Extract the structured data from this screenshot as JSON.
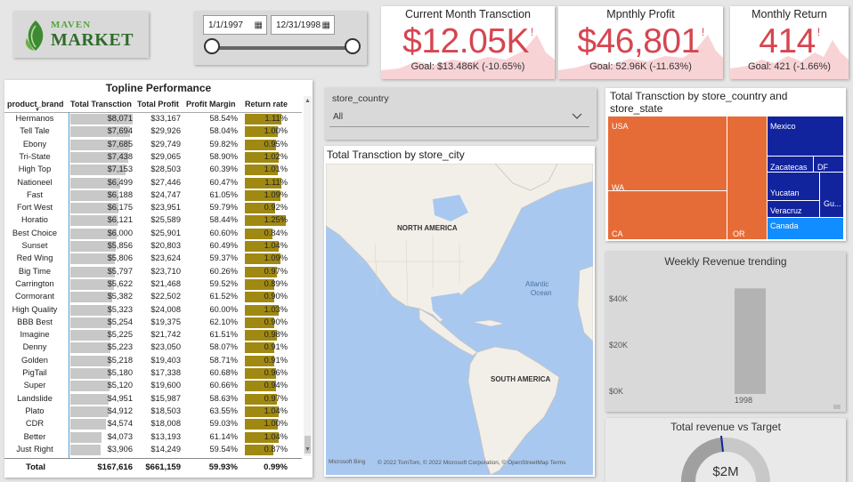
{
  "logo": {
    "line1": "MAVEN",
    "line2": "MARKET"
  },
  "date_slicer": {
    "start": "1/1/1997",
    "end": "12/31/1998"
  },
  "kpis": [
    {
      "title": "Current Month Transction",
      "value": "$12.05K",
      "indicator": "!",
      "goal": "Goal: $13.486K (-10.65%)"
    },
    {
      "title": "Mpnthly Profit",
      "value": "$46,801",
      "indicator": "!",
      "goal": "Goal: 52.96K (-11.63%)"
    },
    {
      "title": "Monthly Return",
      "value": "414",
      "indicator": "!",
      "goal": "Goal: 421 (-1.66%)"
    }
  ],
  "table": {
    "title": "Topline Performance",
    "columns": [
      "product_brand",
      "Total Transction",
      "Total Profit",
      "Profit Margin",
      "Return rate"
    ],
    "rows": [
      [
        "Hermanos",
        "$8,071",
        "$33,167",
        "58.54%",
        "1.11%"
      ],
      [
        "Tell Tale",
        "$7,694",
        "$29,926",
        "58.04%",
        "1.00%"
      ],
      [
        "Ebony",
        "$7,685",
        "$29,749",
        "59.82%",
        "0.95%"
      ],
      [
        "Tri-State",
        "$7,438",
        "$29,065",
        "58.90%",
        "1.02%"
      ],
      [
        "High Top",
        "$7,153",
        "$28,503",
        "60.39%",
        "1.01%"
      ],
      [
        "Nationeel",
        "$6,499",
        "$27,446",
        "60.47%",
        "1.11%"
      ],
      [
        "Fast",
        "$6,188",
        "$24,747",
        "61.05%",
        "1.09%"
      ],
      [
        "Fort West",
        "$6,175",
        "$23,951",
        "59.79%",
        "0.92%"
      ],
      [
        "Horatio",
        "$6,121",
        "$25,589",
        "58.44%",
        "1.25%"
      ],
      [
        "Best Choice",
        "$6,000",
        "$25,901",
        "60.60%",
        "0.84%"
      ],
      [
        "Sunset",
        "$5,856",
        "$20,803",
        "60.49%",
        "1.04%"
      ],
      [
        "Red Wing",
        "$5,806",
        "$23,624",
        "59.37%",
        "1.09%"
      ],
      [
        "Big Time",
        "$5,797",
        "$23,710",
        "60.26%",
        "0.97%"
      ],
      [
        "Carrington",
        "$5,622",
        "$21,468",
        "59.52%",
        "0.89%"
      ],
      [
        "Cormorant",
        "$5,382",
        "$22,502",
        "61.52%",
        "0.90%"
      ],
      [
        "High Quality",
        "$5,323",
        "$24,008",
        "60.00%",
        "1.03%"
      ],
      [
        "BBB Best",
        "$5,254",
        "$19,375",
        "62.10%",
        "0.90%"
      ],
      [
        "Imagine",
        "$5,225",
        "$21,742",
        "61.51%",
        "0.98%"
      ],
      [
        "Denny",
        "$5,223",
        "$23,050",
        "58.07%",
        "0.91%"
      ],
      [
        "Golden",
        "$5,218",
        "$19,403",
        "58.71%",
        "0.91%"
      ],
      [
        "PigTail",
        "$5,180",
        "$17,338",
        "60.68%",
        "0.96%"
      ],
      [
        "Super",
        "$5,120",
        "$19,600",
        "60.66%",
        "0.94%"
      ],
      [
        "Landslide",
        "$4,951",
        "$15,987",
        "58.63%",
        "0.97%"
      ],
      [
        "Plato",
        "$4,912",
        "$18,503",
        "63.55%",
        "1.04%"
      ],
      [
        "CDR",
        "$4,574",
        "$18,008",
        "59.03%",
        "1.00%"
      ],
      [
        "Better",
        "$4,073",
        "$13,193",
        "61.14%",
        "1.04%"
      ],
      [
        "Just Right",
        "$3,906",
        "$14,249",
        "59.54%",
        "0.87%"
      ]
    ],
    "total": [
      "Total",
      "$167,616",
      "$661,159",
      "59.93%",
      "0.99%"
    ]
  },
  "country_slicer": {
    "label": "store_country",
    "value": "All"
  },
  "map": {
    "title": "Total Transction by store_city",
    "labels": {
      "na": "NORTH AMERICA",
      "sa": "SOUTH AMERICA",
      "ocean1": "Atlantic",
      "ocean2": "Ocean"
    },
    "attribution": "© 2022 TomTom, © 2022 Microsoft Corporation, © OpenStreetMap  Terms",
    "bing": "Microsoft Bing"
  },
  "treemap": {
    "title": "Total Transction by store_country and store_state",
    "labels": {
      "usa": "USA",
      "wa": "WA",
      "ca": "CA",
      "or": "OR",
      "mexico": "Mexico",
      "zacatecas": "Zacatecas",
      "df": "DF",
      "yucatan": "Yucatan",
      "veracruz": "Veracruz",
      "gu": "Gu...",
      "canada": "Canada"
    },
    "colors": {
      "usa": "#e66c37",
      "mexico": "#12239e",
      "canada": "#118dff"
    }
  },
  "weekly": {
    "title": "Weekly Revenue trending",
    "yticks": [
      "$40K",
      "$20K",
      "$0K"
    ],
    "chart_data": {
      "type": "bar",
      "categories": [
        "1998"
      ],
      "values": [
        42000
      ],
      "ylim": [
        0,
        46000
      ]
    }
  },
  "gauge": {
    "title": "Total revenue vs Target",
    "value": "$2M"
  }
}
